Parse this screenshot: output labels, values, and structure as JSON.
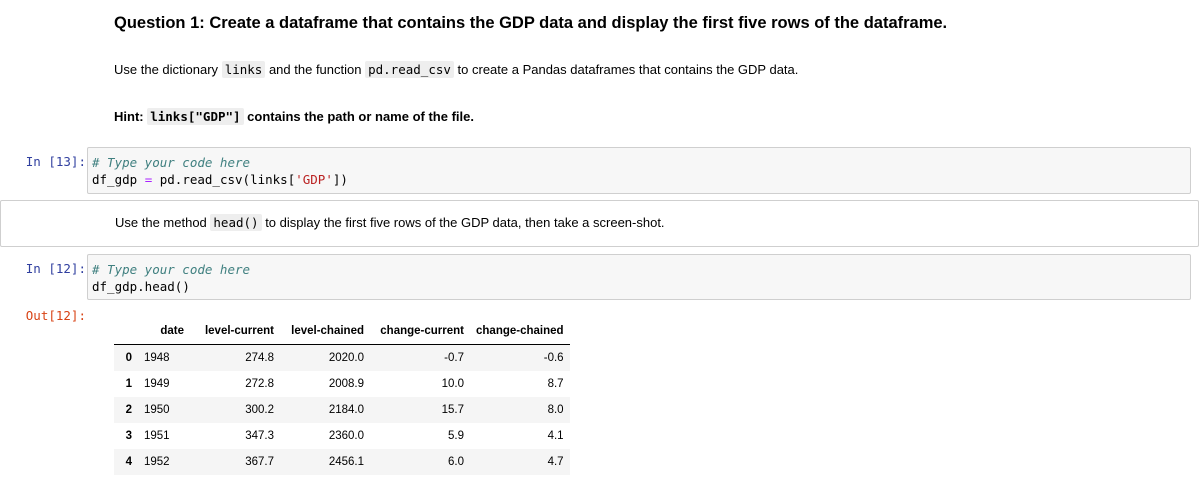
{
  "cell1": {
    "heading": "Question 1: Create a dataframe that contains the GDP data and display the first five rows of the dataframe.",
    "para_prefix": "Use the dictionary",
    "para_code1": "links",
    "para_mid": "and the function",
    "para_code2": "pd.read_csv",
    "para_suffix": "to create a Pandas dataframes that contains the GDP data.",
    "hint_label": "Hint:",
    "hint_code": "links[\"GDP\"]",
    "hint_text": "contains the path or name of the file."
  },
  "cell2": {
    "prompt": "In [13]:",
    "comment": "# Type your code here",
    "line2_var": "df_gdp",
    "line2_op": "=",
    "line2_call": "pd.read_csv",
    "line2_open": "(",
    "line2_arg": "links[",
    "line2_str": "'GDP'",
    "line2_close": "])"
  },
  "cell3": {
    "text_prefix": "Use the method",
    "text_code": "head()",
    "text_suffix": "to display the first five rows of the GDP data, then take a screen-shot."
  },
  "cell4": {
    "prompt": "In [12]:",
    "comment": "# Type your code here",
    "line2_obj": "df_gdp.head",
    "line2_paren": "()",
    "out_prompt": "Out[12]:"
  },
  "dataframe": {
    "columns": [
      "date",
      "level-current",
      "level-chained",
      "change-current",
      "change-chained"
    ],
    "rows": [
      {
        "idx": "0",
        "date": "1948",
        "level_current": "274.8",
        "level_chained": "2020.0",
        "change_current": "-0.7",
        "change_chained": "-0.6"
      },
      {
        "idx": "1",
        "date": "1949",
        "level_current": "272.8",
        "level_chained": "2008.9",
        "change_current": "10.0",
        "change_chained": "8.7"
      },
      {
        "idx": "2",
        "date": "1950",
        "level_current": "300.2",
        "level_chained": "2184.0",
        "change_current": "15.7",
        "change_chained": "8.0"
      },
      {
        "idx": "3",
        "date": "1951",
        "level_current": "347.3",
        "level_chained": "2360.0",
        "change_current": "5.9",
        "change_chained": "4.1"
      },
      {
        "idx": "4",
        "date": "1952",
        "level_current": "367.7",
        "level_chained": "2456.1",
        "change_current": "6.0",
        "change_chained": "4.7"
      }
    ]
  }
}
